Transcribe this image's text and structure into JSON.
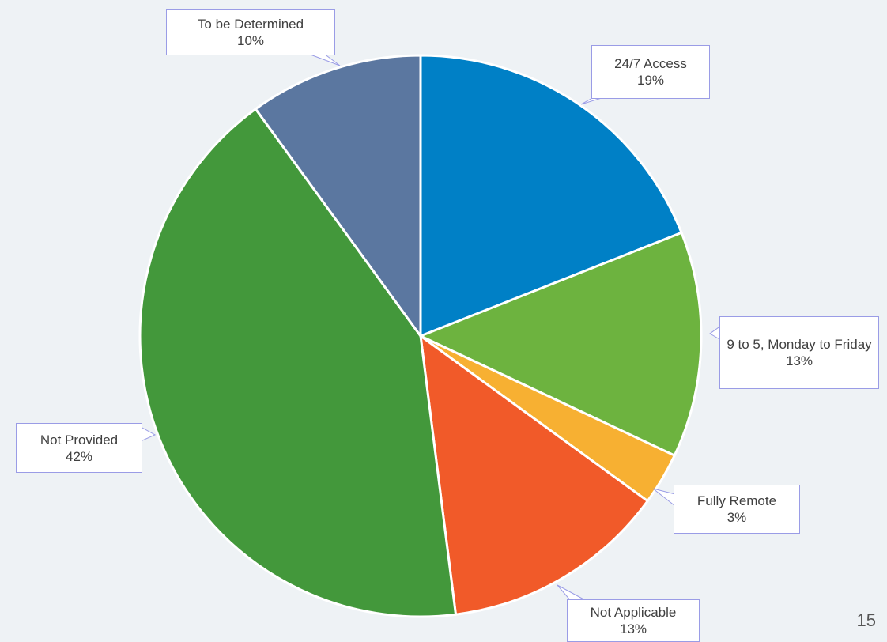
{
  "chart_data": {
    "type": "pie",
    "categories": [
      "24/7 Access",
      "9 to 5, Monday to Friday",
      "Fully Remote",
      "Not Applicable",
      "Not Provided",
      "To be Determined"
    ],
    "values": [
      19,
      13,
      3,
      13,
      42,
      10
    ],
    "value_labels": [
      "19%",
      "13%",
      "3%",
      "13%",
      "42%",
      "10%"
    ],
    "colors": [
      "#0080c6",
      "#6db33f",
      "#f7b032",
      "#f15a29",
      "#43983b",
      "#5b77a0"
    ]
  },
  "page_number": "15"
}
